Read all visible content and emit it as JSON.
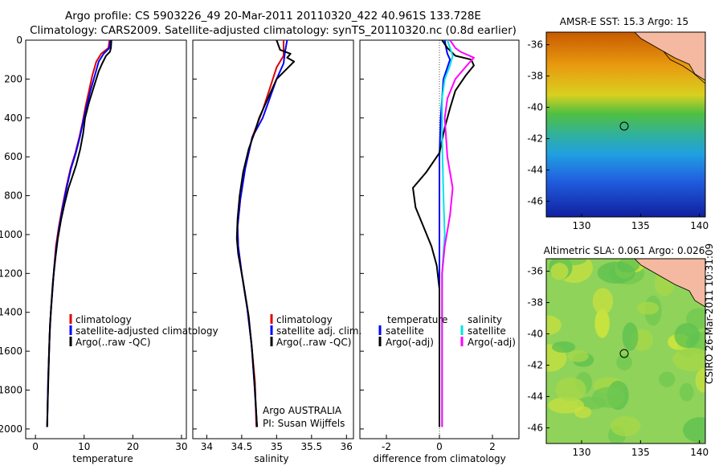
{
  "header": {
    "line1": "Argo profile: CS 5903226_49 20-Mar-2011 20110320_422 40.961S 133.728E",
    "line2": "Climatology: CARS2009. Satellite-adjusted climatology: synTS_20110320.nc (0.8d earlier)"
  },
  "colors": {
    "climatology": "#e00000",
    "satellite": "#0000ff",
    "argo": "#000000",
    "satellite_diff": "#00e5e5",
    "argo_adj": "#ff00ff"
  },
  "chart_data": [
    {
      "type": "line",
      "xlabel": "temperature",
      "ylim": [
        2050,
        0
      ],
      "xlim": [
        -2,
        31
      ],
      "yticks": [
        0,
        200,
        400,
        600,
        800,
        1000,
        1200,
        1400,
        1600,
        1800,
        2000
      ],
      "xticks": [
        0,
        10,
        20,
        30
      ],
      "legend_position": "lower-right",
      "series": [
        {
          "name": "climatology",
          "color": "#e00000",
          "points": [
            [
              15.2,
              0
            ],
            [
              15.0,
              40
            ],
            [
              13.5,
              70
            ],
            [
              12.5,
              110
            ],
            [
              11.7,
              180
            ],
            [
              11.0,
              260
            ],
            [
              10.3,
              340
            ],
            [
              9.7,
              420
            ],
            [
              9.0,
              500
            ],
            [
              8.2,
              580
            ],
            [
              7.2,
              660
            ],
            [
              6.3,
              760
            ],
            [
              5.5,
              860
            ],
            [
              4.8,
              960
            ],
            [
              4.2,
              1060
            ],
            [
              3.8,
              1180
            ],
            [
              3.4,
              1320
            ],
            [
              3.0,
              1460
            ],
            [
              2.8,
              1600
            ],
            [
              2.6,
              1750
            ],
            [
              2.5,
              1870
            ],
            [
              2.4,
              1990
            ]
          ]
        },
        {
          "name": "satellite-adjusted climatology",
          "color": "#0000ff",
          "points": [
            [
              15.4,
              0
            ],
            [
              15.2,
              40
            ],
            [
              14.0,
              70
            ],
            [
              13.0,
              110
            ],
            [
              12.2,
              180
            ],
            [
              11.3,
              260
            ],
            [
              10.5,
              340
            ],
            [
              9.8,
              420
            ],
            [
              9.1,
              500
            ],
            [
              8.3,
              580
            ],
            [
              7.3,
              660
            ],
            [
              6.4,
              760
            ],
            [
              5.6,
              860
            ],
            [
              4.9,
              960
            ],
            [
              4.3,
              1060
            ],
            [
              3.8,
              1180
            ],
            [
              3.4,
              1320
            ],
            [
              3.0,
              1460
            ],
            [
              2.8,
              1600
            ],
            [
              2.6,
              1750
            ],
            [
              2.5,
              1870
            ],
            [
              2.4,
              1990
            ]
          ]
        },
        {
          "name": "Argo(..raw -QC)",
          "color": "#000000",
          "points": [
            [
              15.6,
              0
            ],
            [
              15.5,
              40
            ],
            [
              15.3,
              60
            ],
            [
              14.5,
              80
            ],
            [
              13.7,
              120
            ],
            [
              13.0,
              160
            ],
            [
              12.0,
              240
            ],
            [
              11.0,
              320
            ],
            [
              10.2,
              400
            ],
            [
              9.8,
              480
            ],
            [
              9.2,
              560
            ],
            [
              8.4,
              640
            ],
            [
              7.6,
              700
            ],
            [
              6.8,
              760
            ],
            [
              6.0,
              840
            ],
            [
              5.3,
              920
            ],
            [
              4.6,
              1020
            ],
            [
              4.1,
              1120
            ],
            [
              3.6,
              1240
            ],
            [
              3.2,
              1380
            ],
            [
              2.9,
              1520
            ],
            [
              2.7,
              1700
            ],
            [
              2.5,
              1880
            ],
            [
              2.4,
              1990
            ]
          ]
        }
      ],
      "legend": [
        "climatology",
        "satellite-adjusted climatology",
        "Argo(..raw -QC)"
      ]
    },
    {
      "type": "line",
      "xlabel": "salinity",
      "ylim": [
        2050,
        0
      ],
      "xlim": [
        33.8,
        36.1
      ],
      "xticks": [
        34,
        34.5,
        35,
        35.5,
        36
      ],
      "legend_position": "lower-right",
      "series": [
        {
          "name": "climatology",
          "color": "#e00000",
          "points": [
            [
              35.1,
              0
            ],
            [
              35.1,
              80
            ],
            [
              35.0,
              140
            ],
            [
              34.9,
              250
            ],
            [
              34.8,
              360
            ],
            [
              34.65,
              500
            ],
            [
              34.55,
              660
            ],
            [
              34.48,
              820
            ],
            [
              34.44,
              960
            ],
            [
              34.45,
              1060
            ],
            [
              34.5,
              1200
            ],
            [
              34.58,
              1380
            ],
            [
              34.64,
              1560
            ],
            [
              34.69,
              1760
            ],
            [
              34.71,
              1990
            ]
          ]
        },
        {
          "name": "satellite adj. clim.",
          "color": "#0000ff",
          "points": [
            [
              35.15,
              0
            ],
            [
              35.12,
              60
            ],
            [
              35.1,
              120
            ],
            [
              35.0,
              200
            ],
            [
              34.9,
              300
            ],
            [
              34.8,
              400
            ],
            [
              34.65,
              500
            ],
            [
              34.55,
              660
            ],
            [
              34.48,
              820
            ],
            [
              34.44,
              960
            ],
            [
              34.45,
              1060
            ],
            [
              34.5,
              1200
            ],
            [
              34.58,
              1380
            ],
            [
              34.64,
              1560
            ],
            [
              34.68,
              1760
            ],
            [
              34.72,
              1990
            ]
          ]
        },
        {
          "name": "Argo(..raw -QC)",
          "color": "#000000",
          "points": [
            [
              35.0,
              0
            ],
            [
              35.05,
              50
            ],
            [
              35.2,
              70
            ],
            [
              35.15,
              90
            ],
            [
              35.25,
              110
            ],
            [
              35.0,
              200
            ],
            [
              34.85,
              320
            ],
            [
              34.75,
              400
            ],
            [
              34.68,
              480
            ],
            [
              34.6,
              560
            ],
            [
              34.52,
              680
            ],
            [
              34.47,
              800
            ],
            [
              34.44,
              920
            ],
            [
              34.43,
              1020
            ],
            [
              34.45,
              1100
            ],
            [
              34.52,
              1240
            ],
            [
              34.6,
              1420
            ],
            [
              34.65,
              1600
            ],
            [
              34.69,
              1800
            ],
            [
              34.72,
              1990
            ]
          ]
        }
      ],
      "legend": [
        "climatology",
        "satellite adj. clim.",
        "Argo(..raw -QC)"
      ],
      "annotations": [
        "Argo AUSTRALIA",
        "PI: Susan Wijffels"
      ]
    },
    {
      "type": "line",
      "xlabel": "difference from climatology",
      "ylim": [
        2050,
        0
      ],
      "xlim": [
        -3,
        3
      ],
      "xticks": [
        -2,
        0,
        2
      ],
      "legend_position": "lower-center",
      "series": [
        {
          "name": "temperature satellite",
          "color": "#0000ff",
          "points": [
            [
              0.2,
              0
            ],
            [
              0.25,
              40
            ],
            [
              0.3,
              70
            ],
            [
              0.4,
              100
            ],
            [
              0.3,
              140
            ],
            [
              0.15,
              200
            ],
            [
              0.1,
              300
            ],
            [
              0.05,
              400
            ],
            [
              0.0,
              600
            ],
            [
              0.0,
              1000
            ],
            [
              0.0,
              1990
            ]
          ]
        },
        {
          "name": "temperature Argo(-adj)",
          "color": "#000000",
          "points": [
            [
              0.1,
              0
            ],
            [
              0.3,
              40
            ],
            [
              0.6,
              80
            ],
            [
              1.2,
              100
            ],
            [
              1.3,
              130
            ],
            [
              1.0,
              180
            ],
            [
              0.6,
              260
            ],
            [
              0.4,
              350
            ],
            [
              0.2,
              450
            ],
            [
              0.0,
              580
            ],
            [
              -0.5,
              680
            ],
            [
              -1.0,
              760
            ],
            [
              -0.9,
              860
            ],
            [
              -0.6,
              960
            ],
            [
              -0.3,
              1060
            ],
            [
              -0.1,
              1160
            ],
            [
              0.0,
              1280
            ],
            [
              0.0,
              1990
            ]
          ]
        },
        {
          "name": "salinity satellite",
          "color": "#00e5e5",
          "points": [
            [
              0.3,
              0
            ],
            [
              0.4,
              40
            ],
            [
              0.5,
              80
            ],
            [
              0.4,
              130
            ],
            [
              0.2,
              200
            ],
            [
              0.1,
              300
            ],
            [
              0.1,
              500
            ],
            [
              0.15,
              800
            ],
            [
              0.2,
              1000
            ],
            [
              0.1,
              1200
            ],
            [
              0.1,
              1990
            ]
          ]
        },
        {
          "name": "salinity Argo(-adj)",
          "color": "#ff00ff",
          "points": [
            [
              0.4,
              0
            ],
            [
              0.6,
              40
            ],
            [
              0.8,
              60
            ],
            [
              1.3,
              90
            ],
            [
              1.1,
              120
            ],
            [
              0.6,
              200
            ],
            [
              0.3,
              300
            ],
            [
              0.2,
              400
            ],
            [
              0.3,
              600
            ],
            [
              0.5,
              760
            ],
            [
              0.4,
              900
            ],
            [
              0.2,
              1060
            ],
            [
              0.1,
              1200
            ],
            [
              0.1,
              1990
            ]
          ]
        }
      ],
      "legend_headers": [
        "temperature",
        "salinity"
      ],
      "legend": [
        "satellite",
        "Argo(-adj)",
        "satellite",
        "Argo(-adj)"
      ]
    },
    {
      "type": "heatmap",
      "title": "AMSR-E SST: 15.3 Argo: 15",
      "xticks": [
        130,
        135,
        140
      ],
      "yticks": [
        -36,
        -38,
        -40,
        -42,
        -44,
        -46
      ],
      "marker": [
        133.728,
        -40.961
      ]
    },
    {
      "type": "heatmap",
      "title": "Altimetric SLA: 0.061 Argo: 0.026",
      "xticks": [
        130,
        135,
        140
      ],
      "yticks": [
        -36,
        -38,
        -40,
        -42,
        -44,
        -46
      ],
      "marker": [
        133.728,
        -40.961
      ]
    }
  ],
  "stamp": "CSIRO 26-Mar-2011 10:31:09"
}
